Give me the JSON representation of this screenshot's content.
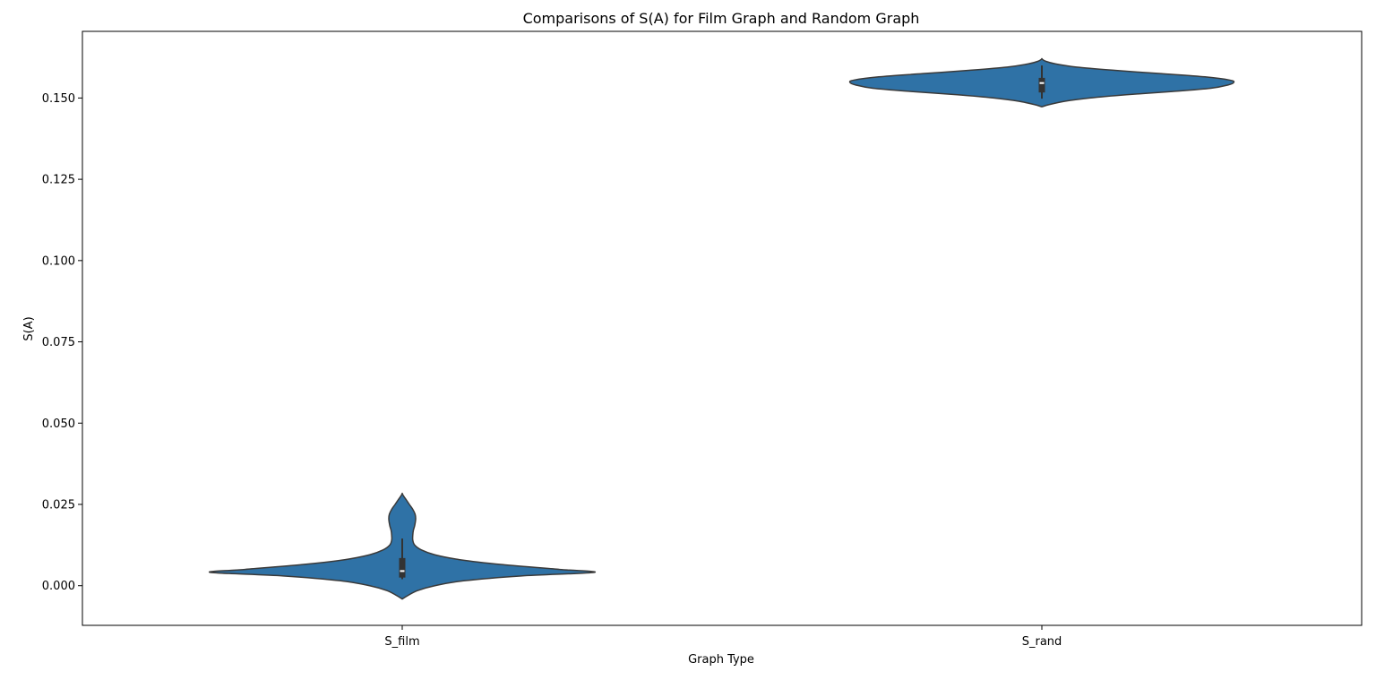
{
  "chart_data": {
    "type": "violin",
    "title": "Comparisons of S(A) for Film Graph and Random Graph",
    "xlabel": "Graph Type",
    "ylabel": "S(A)",
    "categories": [
      "S_film",
      "S_rand"
    ],
    "ylim": [
      -0.0122,
      0.1705
    ],
    "yticks": [
      0.0,
      0.025,
      0.05,
      0.075,
      0.1,
      0.125,
      0.15
    ],
    "ytick_labels": [
      "0.000",
      "0.025",
      "0.050",
      "0.075",
      "0.100",
      "0.125",
      "0.150"
    ],
    "grid": false,
    "legend": "none",
    "colors": {
      "fill": "#2f72a6",
      "edge": "#3a3a3a",
      "box": "#333333",
      "median": "#ffffff"
    },
    "violins": [
      {
        "category": "S_film",
        "density": [
          [
            -0.0041,
            0.0
          ],
          [
            -0.003,
            0.03
          ],
          [
            -0.0015,
            0.08
          ],
          [
            0.0,
            0.17
          ],
          [
            0.0015,
            0.32
          ],
          [
            0.003,
            0.62
          ],
          [
            0.0041,
            1.0
          ],
          [
            0.005,
            0.82
          ],
          [
            0.0065,
            0.52
          ],
          [
            0.008,
            0.3
          ],
          [
            0.0095,
            0.17
          ],
          [
            0.011,
            0.1
          ],
          [
            0.0125,
            0.065
          ],
          [
            0.014,
            0.055
          ],
          [
            0.0155,
            0.055
          ],
          [
            0.017,
            0.058
          ],
          [
            0.0185,
            0.065
          ],
          [
            0.0205,
            0.07
          ],
          [
            0.022,
            0.067
          ],
          [
            0.0235,
            0.055
          ],
          [
            0.025,
            0.037
          ],
          [
            0.0265,
            0.02
          ],
          [
            0.0275,
            0.008
          ],
          [
            0.0283,
            0.0
          ]
        ],
        "box": {
          "whisker_low": 0.002,
          "q1": 0.0025,
          "median": 0.0045,
          "q3": 0.0085,
          "whisker_high": 0.0145
        }
      },
      {
        "category": "S_rand",
        "density": [
          [
            0.1473,
            0.0
          ],
          [
            0.148,
            0.04
          ],
          [
            0.149,
            0.12
          ],
          [
            0.15,
            0.25
          ],
          [
            0.151,
            0.44
          ],
          [
            0.152,
            0.68
          ],
          [
            0.153,
            0.88
          ],
          [
            0.154,
            0.97
          ],
          [
            0.1548,
            1.0
          ],
          [
            0.1555,
            0.98
          ],
          [
            0.1565,
            0.85
          ],
          [
            0.1575,
            0.62
          ],
          [
            0.1585,
            0.38
          ],
          [
            0.1595,
            0.18
          ],
          [
            0.1605,
            0.07
          ],
          [
            0.1613,
            0.02
          ],
          [
            0.162,
            0.0
          ]
        ],
        "box": {
          "whisker_low": 0.1498,
          "q1": 0.1517,
          "median": 0.1546,
          "q3": 0.1562,
          "whisker_high": 0.16
        }
      }
    ]
  }
}
